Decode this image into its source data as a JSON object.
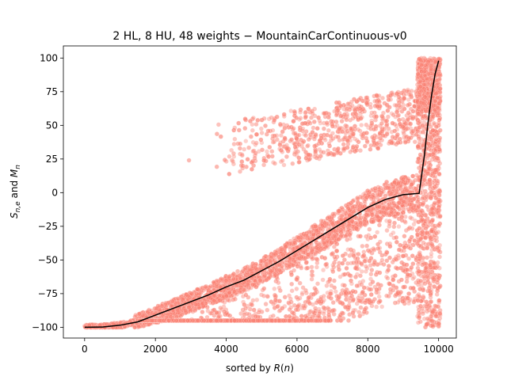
{
  "chart_data": {
    "type": "scatter",
    "title": "2 HL, 8 HU, 48 weights − MountainCarContinuous-v0",
    "xlabel": "sorted by R(n)",
    "ylabel": "S_{n,e} and M_n",
    "xlim": [
      -600,
      10500
    ],
    "ylim": [
      -108,
      109
    ],
    "xticks": [
      0,
      2000,
      4000,
      6000,
      8000,
      10000
    ],
    "xtick_labels": [
      "0",
      "2000",
      "4000",
      "6000",
      "8000",
      "10000"
    ],
    "yticks": [
      -100,
      -75,
      -50,
      -25,
      0,
      25,
      50,
      75,
      100
    ],
    "ytick_labels": [
      "−100",
      "−75",
      "−50",
      "−25",
      "0",
      "25",
      "50",
      "75",
      "100"
    ],
    "grid": false,
    "legend": "none",
    "colors": {
      "scatter": "#fa8072",
      "line": "#000000"
    },
    "series": [
      {
        "kind": "scatter",
        "description_of_regions": "episode scores per sorted network",
        "clusters": [
          {
            "x_range": [
              0,
              9450
            ],
            "y_center_curve": "follows mean",
            "y_spread": 12
          },
          {
            "x_range": [
              1500,
              9450
            ],
            "y_range": [
              -95,
              0
            ]
          },
          {
            "x_range": [
              3500,
              9400
            ],
            "y_range": [
              25,
              85
            ]
          },
          {
            "x_range": [
              9400,
              10050
            ],
            "y_range": [
              -100,
              100
            ]
          }
        ]
      },
      {
        "kind": "line",
        "x": [
          0,
          500,
          1000,
          1500,
          2000,
          2500,
          3000,
          3500,
          4000,
          4500,
          5000,
          5500,
          6000,
          6500,
          7000,
          7500,
          8000,
          8500,
          9000,
          9450,
          9600,
          9700,
          9800,
          9900,
          10000
        ],
        "y": [
          -100,
          -99.8,
          -98.5,
          -96,
          -91,
          -86,
          -81,
          -76,
          -70,
          -65,
          -58,
          -51,
          -43,
          -35,
          -27,
          -19,
          -11,
          -5,
          -1.5,
          -0.5,
          28,
          52,
          72,
          88,
          98
        ]
      }
    ]
  }
}
